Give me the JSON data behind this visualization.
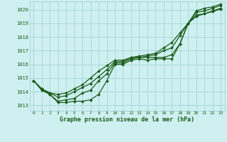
{
  "title": "Graphe pression niveau de la mer (hPa)",
  "bg_color": "#cff0f0",
  "grid_color": "#a8d8d8",
  "line_color": "#1a5c1a",
  "xlim": [
    -0.5,
    23.5
  ],
  "ylim": [
    1012.6,
    1020.6
  ],
  "xticks": [
    0,
    1,
    2,
    3,
    4,
    5,
    6,
    7,
    8,
    9,
    10,
    11,
    12,
    13,
    14,
    15,
    16,
    17,
    18,
    19,
    20,
    21,
    22,
    23
  ],
  "yticks": [
    1013,
    1014,
    1015,
    1016,
    1017,
    1018,
    1019,
    1020
  ],
  "series": [
    [
      1014.8,
      1014.1,
      1013.8,
      1013.2,
      1013.2,
      1013.3,
      1013.3,
      1013.4,
      1013.8,
      1014.8,
      1016.0,
      1016.0,
      1016.3,
      1016.4,
      1016.3,
      1016.4,
      1016.4,
      1016.4,
      1017.5,
      1019.0,
      1019.5,
      1019.7,
      1019.85,
      1020.05
    ],
    [
      1014.8,
      1014.2,
      1013.8,
      1013.3,
      1013.4,
      1013.5,
      1013.9,
      1014.1,
      1014.8,
      1015.3,
      1016.1,
      1016.1,
      1016.4,
      1016.5,
      1016.5,
      1016.5,
      1016.5,
      1016.7,
      1017.5,
      1019.0,
      1019.6,
      1019.7,
      1019.9,
      1020.1
    ],
    [
      1014.8,
      1014.2,
      1013.9,
      1013.6,
      1013.7,
      1014.0,
      1014.3,
      1014.6,
      1015.1,
      1015.6,
      1016.2,
      1016.2,
      1016.5,
      1016.5,
      1016.6,
      1016.7,
      1017.0,
      1017.2,
      1018.1,
      1019.0,
      1019.8,
      1019.9,
      1020.1,
      1020.3
    ],
    [
      1014.8,
      1014.2,
      1013.9,
      1013.8,
      1013.9,
      1014.2,
      1014.5,
      1015.0,
      1015.5,
      1015.9,
      1016.3,
      1016.3,
      1016.5,
      1016.6,
      1016.7,
      1016.8,
      1017.2,
      1017.6,
      1018.3,
      1019.0,
      1019.9,
      1020.1,
      1020.2,
      1020.4
    ]
  ]
}
